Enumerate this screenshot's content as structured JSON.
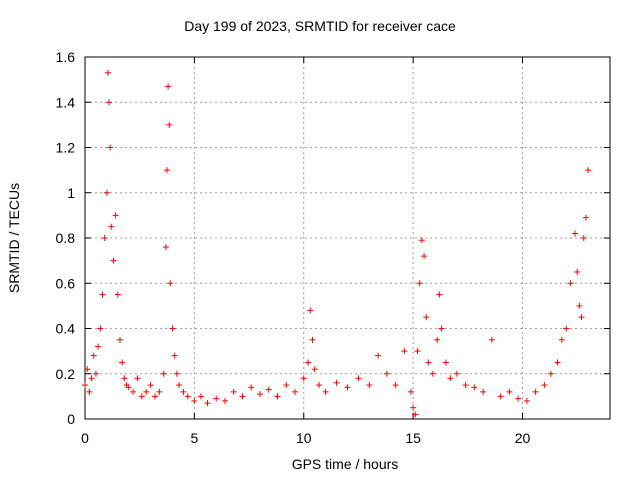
{
  "chart_data": {
    "type": "scatter",
    "title": "Day 199 of 2023, SRMTID for receiver cace",
    "xlabel": "GPS time / hours",
    "ylabel": "SRMTID / TECUs",
    "xlim": [
      0,
      24
    ],
    "ylim": [
      0,
      1.6
    ],
    "xticks": [
      0,
      5,
      10,
      15,
      20
    ],
    "xtick_labels": [
      "0",
      "5",
      "10",
      "15",
      "20"
    ],
    "yticks": [
      0,
      0.2,
      0.4,
      0.6,
      0.8,
      1.0,
      1.2,
      1.4,
      1.6
    ],
    "ytick_labels": [
      "0",
      "0.2",
      "0.4",
      "0.6",
      "0.8",
      "1",
      "1.2",
      "1.4",
      "1.6"
    ],
    "grid": true,
    "marker": "+",
    "marker_color": "#ff0000",
    "series": [
      {
        "name": "SRMTID",
        "x": [
          0.0,
          0.1,
          0.2,
          0.3,
          0.4,
          0.5,
          0.6,
          0.7,
          0.8,
          0.9,
          1.0,
          1.05,
          1.1,
          1.15,
          1.2,
          1.3,
          1.4,
          1.5,
          1.6,
          1.7,
          1.8,
          1.9,
          2.0,
          2.2,
          2.4,
          2.6,
          2.8,
          3.0,
          3.2,
          3.4,
          3.6,
          3.7,
          3.75,
          3.8,
          3.85,
          3.9,
          4.0,
          4.1,
          4.2,
          4.3,
          4.5,
          4.7,
          5.0,
          5.3,
          5.6,
          6.0,
          6.4,
          6.8,
          7.2,
          7.6,
          8.0,
          8.4,
          8.8,
          9.2,
          9.6,
          10.0,
          10.2,
          10.3,
          10.4,
          10.5,
          10.7,
          11.0,
          11.5,
          12.0,
          12.5,
          13.0,
          13.4,
          13.8,
          14.2,
          14.6,
          14.9,
          15.0,
          15.1,
          15.2,
          15.3,
          15.4,
          15.5,
          15.6,
          15.7,
          15.9,
          16.1,
          16.2,
          16.3,
          16.5,
          16.7,
          17.0,
          17.4,
          17.8,
          18.2,
          18.6,
          19.0,
          19.4,
          19.8,
          20.2,
          20.6,
          21.0,
          21.3,
          21.6,
          21.8,
          22.0,
          22.2,
          22.4,
          22.5,
          22.6,
          22.7,
          22.8,
          22.9,
          23.0
        ],
        "y": [
          0.15,
          0.22,
          0.12,
          0.18,
          0.28,
          0.2,
          0.32,
          0.4,
          0.55,
          0.8,
          1.0,
          1.53,
          1.4,
          1.2,
          0.85,
          0.7,
          0.9,
          0.55,
          0.35,
          0.25,
          0.18,
          0.15,
          0.14,
          0.12,
          0.18,
          0.1,
          0.12,
          0.15,
          0.1,
          0.12,
          0.2,
          0.76,
          1.1,
          1.47,
          1.3,
          0.6,
          0.4,
          0.28,
          0.2,
          0.15,
          0.12,
          0.1,
          0.08,
          0.1,
          0.07,
          0.09,
          0.08,
          0.12,
          0.1,
          0.14,
          0.11,
          0.13,
          0.1,
          0.15,
          0.12,
          0.18,
          0.25,
          0.48,
          0.35,
          0.22,
          0.15,
          0.12,
          0.16,
          0.14,
          0.18,
          0.15,
          0.28,
          0.2,
          0.15,
          0.3,
          0.12,
          0.05,
          0.02,
          0.3,
          0.6,
          0.79,
          0.72,
          0.45,
          0.25,
          0.2,
          0.35,
          0.55,
          0.4,
          0.25,
          0.18,
          0.2,
          0.15,
          0.14,
          0.12,
          0.35,
          0.1,
          0.12,
          0.09,
          0.08,
          0.12,
          0.15,
          0.2,
          0.25,
          0.35,
          0.4,
          0.6,
          0.82,
          0.65,
          0.5,
          0.45,
          0.8,
          0.89,
          1.1
        ]
      }
    ]
  }
}
